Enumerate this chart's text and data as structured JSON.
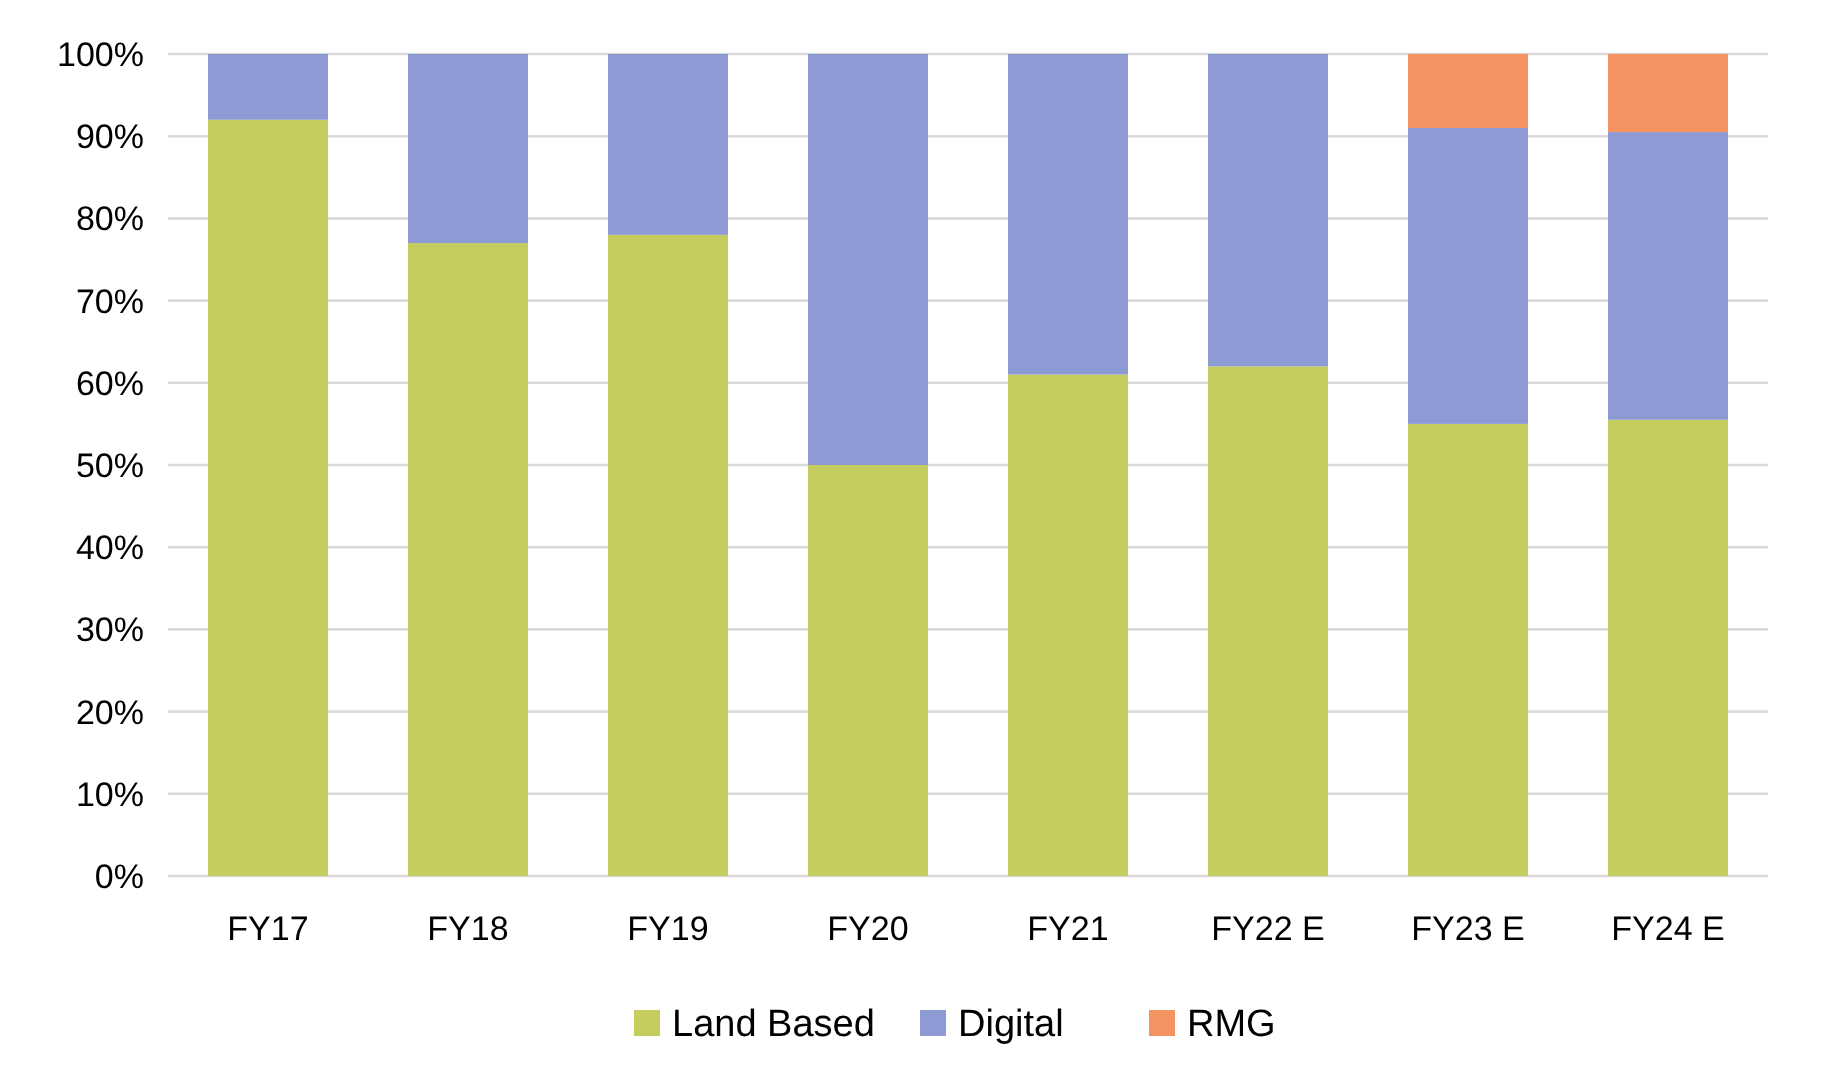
{
  "chart_data": {
    "type": "bar",
    "stacked": true,
    "categories": [
      "FY17",
      "FY18",
      "FY19",
      "FY20",
      "FY21",
      "FY22 E",
      "FY23 E",
      "FY24 E"
    ],
    "series": [
      {
        "name": "Land Based",
        "color": "#c5cd5e",
        "values": [
          92,
          77,
          78,
          50,
          61,
          62,
          55,
          55.5
        ]
      },
      {
        "name": "Digital",
        "color": "#8e9ad4",
        "values": [
          8,
          23,
          22,
          50,
          39,
          38,
          36,
          35
        ]
      },
      {
        "name": "RMG",
        "color": "#f39362",
        "values": [
          null,
          null,
          null,
          null,
          null,
          null,
          9,
          9.5
        ]
      }
    ],
    "ylim": [
      0,
      100
    ],
    "yticks": [
      {
        "value": 0,
        "label": "0%"
      },
      {
        "value": 10,
        "label": "10%"
      },
      {
        "value": 20,
        "label": "20%"
      },
      {
        "value": 30,
        "label": "30%"
      },
      {
        "value": 40,
        "label": "40%"
      },
      {
        "value": 50,
        "label": "50%"
      },
      {
        "value": 60,
        "label": "60%"
      },
      {
        "value": 70,
        "label": "70%"
      },
      {
        "value": 80,
        "label": "80%"
      },
      {
        "value": 90,
        "label": "90%"
      },
      {
        "value": 100,
        "label": "100%"
      }
    ],
    "grid": "y",
    "legend": "bottom"
  }
}
